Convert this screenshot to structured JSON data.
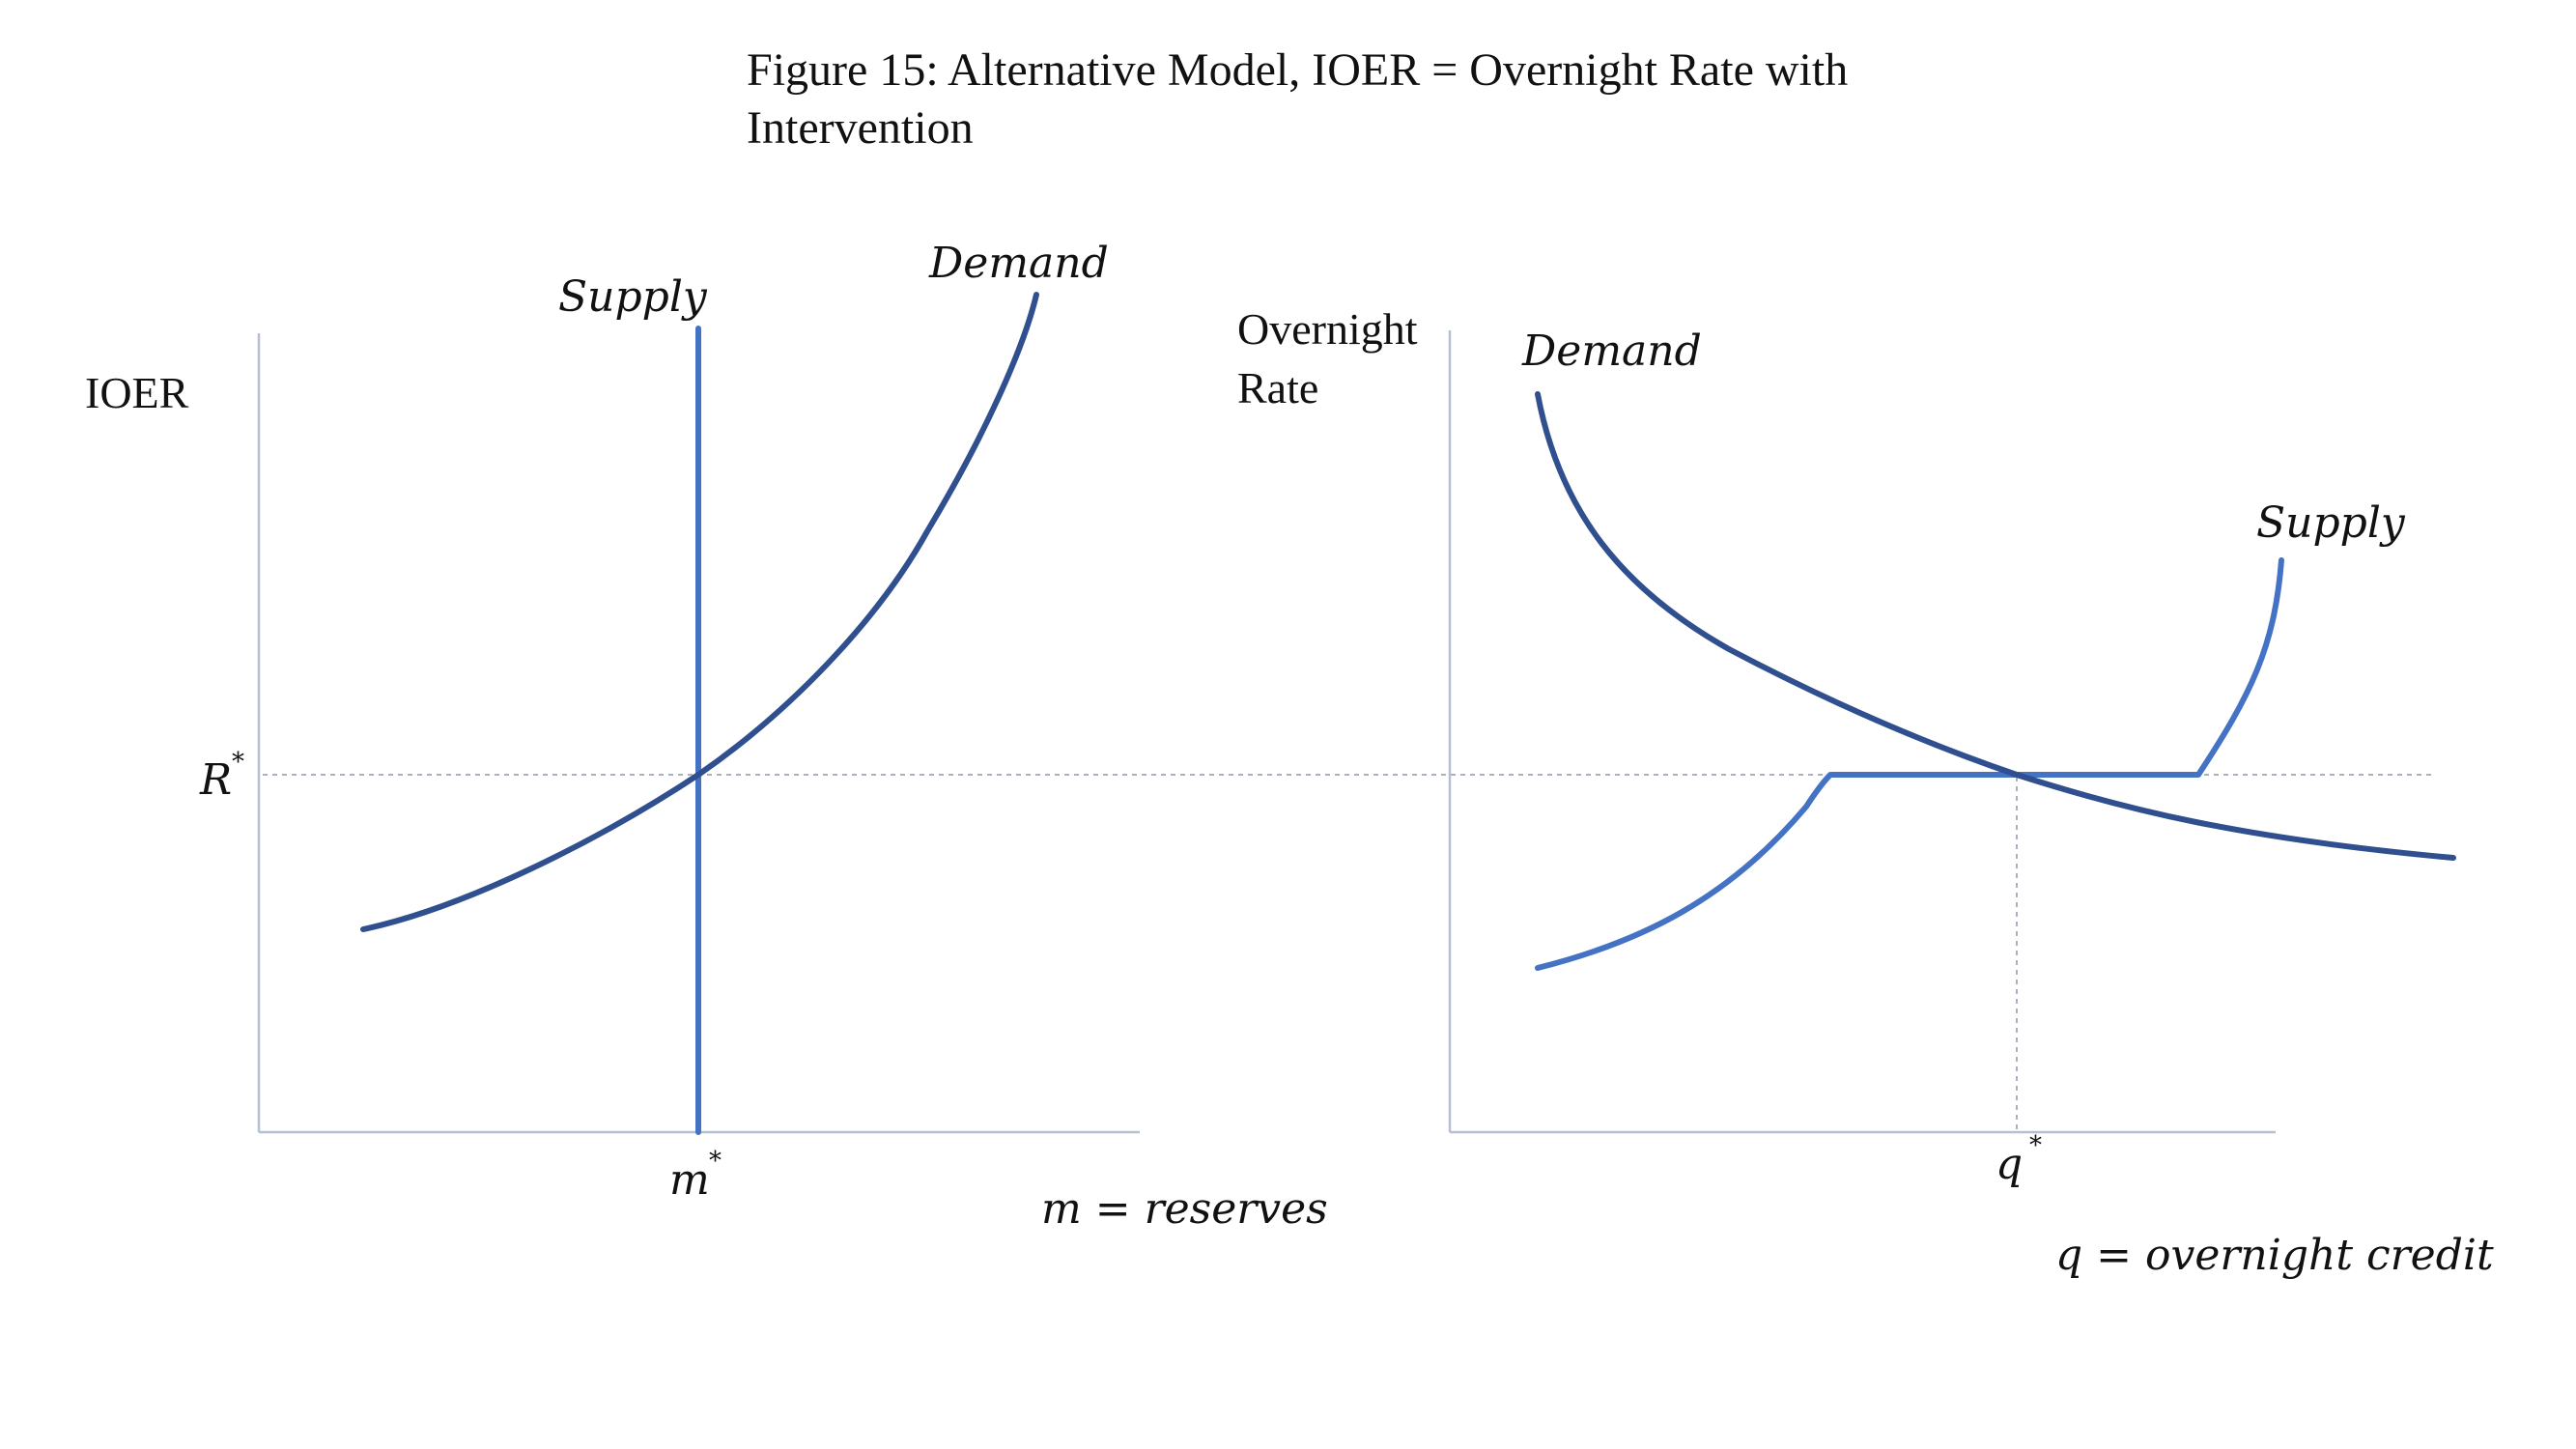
{
  "title": {
    "line1": "Figure 15: Alternative Model, IOER = Overnight Rate with",
    "line2": "Intervention"
  },
  "left_panel": {
    "y_axis_label": "IOER",
    "supply_label": "Supply",
    "demand_label": "Demand",
    "equilibrium_rate_label": "R",
    "equilibrium_rate_sup": "*",
    "equilibrium_quantity_label": "m",
    "equilibrium_quantity_sup": "*",
    "x_axis_label": "m = reserves"
  },
  "right_panel": {
    "y_axis_label_line1": "Overnight",
    "y_axis_label_line2": "Rate",
    "demand_label": "Demand",
    "supply_label": "Supply",
    "equilibrium_quantity_label": "q",
    "equilibrium_quantity_sup": "*",
    "x_axis_label": "q = overnight credit"
  },
  "colors": {
    "demand_curve": "#2f4f8f",
    "supply_curve": "#4472c4",
    "axes": "#b4bfd0",
    "guides": "#a9b1bd"
  }
}
